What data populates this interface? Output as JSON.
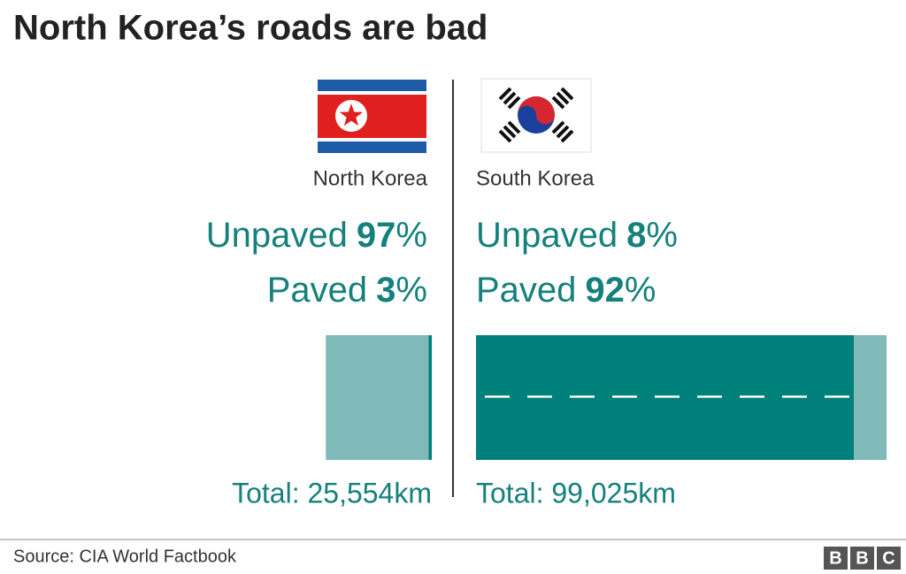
{
  "chart_data": {
    "type": "road",
    "title": "North Korea’s roads are bad",
    "categories": [
      "North Korea",
      "South Korea"
    ],
    "series": [
      {
        "name": "Unpaved",
        "color": "#7fbab8",
        "values": [
          97,
          8
        ]
      },
      {
        "name": "Paved",
        "color": "#00807a",
        "values": [
          3,
          92
        ]
      }
    ],
    "unit": "%",
    "totals": [
      25554,
      99025
    ],
    "total_labels": [
      "Total: 25,554km",
      "Total: 99,025km"
    ],
    "source": "Source: CIA World Factbook",
    "logo": [
      "B",
      "B",
      "C"
    ]
  }
}
